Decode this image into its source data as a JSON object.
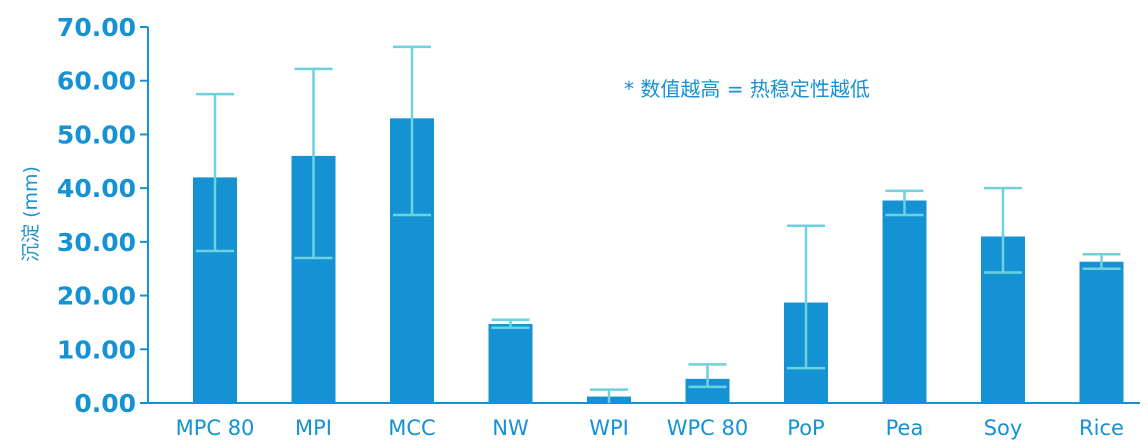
{
  "colors": {
    "bar": "#1592D3",
    "error_bar": "#6DD1DF",
    "text": "#1592D3",
    "axis": "#1592D3"
  },
  "chart_data": {
    "type": "bar",
    "title": "",
    "xlabel": "",
    "ylabel": "沉淀 (mm)",
    "annotation": "* 数值越高 = 热稳定性越低",
    "ylim": [
      0,
      70
    ],
    "yticks": [
      "0.00",
      "10.00",
      "20.00",
      "30.00",
      "40.00",
      "50.00",
      "60.00",
      "70.00"
    ],
    "grid": false,
    "categories": [
      "MPC 80",
      "MPI",
      "MCC",
      "NW",
      "WPI",
      "WPC 80",
      "PoP",
      "Pea",
      "Soy",
      "Rice"
    ],
    "values": [
      42.0,
      46.0,
      53.0,
      14.7,
      1.2,
      4.5,
      18.7,
      37.7,
      31.0,
      26.3
    ],
    "error_low": [
      28.3,
      27.0,
      35.0,
      14.0,
      0.0,
      3.0,
      6.5,
      35.0,
      24.3,
      25.0
    ],
    "error_high": [
      57.5,
      62.2,
      66.3,
      15.5,
      2.5,
      7.2,
      33.0,
      39.5,
      40.0,
      27.7
    ]
  }
}
